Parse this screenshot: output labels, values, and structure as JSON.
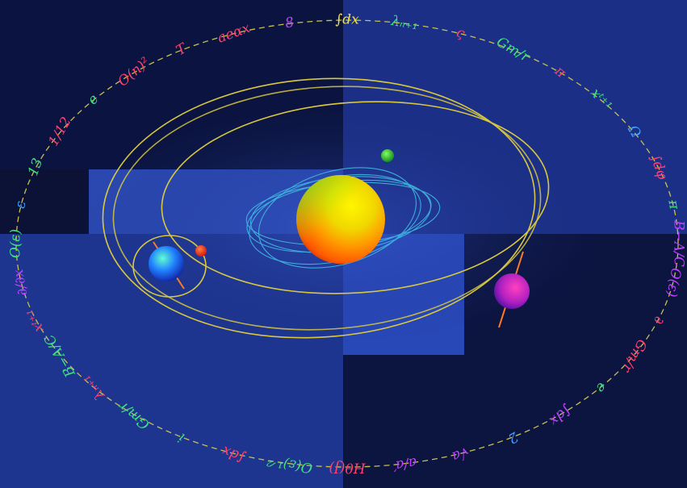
{
  "colors": {
    "background_dark": "#0b1236",
    "background_mid": "#1a2d7a",
    "background_light": "#2a44a8",
    "orbit_gold": "#d8c840",
    "orbit_cyan": "#40b8e0",
    "formula_dashes": "#c8c050"
  },
  "formulas": [
    {
      "text": "∫dx",
      "color": "#f0e040"
    },
    {
      "text": "λₙ₊₁",
      "color": "#40e080"
    },
    {
      "text": "ς",
      "color": "#ff4070"
    },
    {
      "text": "Gm/r",
      "color": "#40e080"
    },
    {
      "text": "π",
      "color": "#ff4070"
    },
    {
      "text": "xᵗ⁺¹",
      "color": "#40e080"
    },
    {
      "text": "Ω",
      "color": "#40a0ff"
    },
    {
      "text": "∫dφ",
      "color": "#ff4070"
    },
    {
      "text": "π",
      "color": "#40e080"
    },
    {
      "text": "B−A/C",
      "color": "#c040ff"
    },
    {
      "text": "O(ε)",
      "color": "#c040ff"
    },
    {
      "text": "∂",
      "color": "#ff4070"
    },
    {
      "text": "Gm/r",
      "color": "#ff4070"
    },
    {
      "text": "e",
      "color": "#40e080"
    },
    {
      "text": "∫dx",
      "color": "#c040ff"
    },
    {
      "text": "2",
      "color": "#40a0ff"
    },
    {
      "text": "√a",
      "color": "#c040ff"
    },
    {
      "text": "a/a′",
      "color": "#c040ff"
    },
    {
      "text": "Hθ(J)",
      "color": "#ff4070"
    },
    {
      "text": "O(ε)¹ᐟ²",
      "color": "#40e080"
    },
    {
      "text": "∫dx",
      "color": "#ff4070"
    },
    {
      "text": "i",
      "color": "#40e080"
    },
    {
      "text": "Gm/r",
      "color": "#40e080"
    },
    {
      "text": "λₙ₊₁",
      "color": "#ff4070"
    },
    {
      "text": "B−A/C",
      "color": "#40e080"
    },
    {
      "text": "xᵗ⁺¹",
      "color": "#ff4070"
    },
    {
      "text": "∂/∂x",
      "color": "#c040ff"
    },
    {
      "text": "O(ε)",
      "color": "#40e080"
    },
    {
      "text": "ε",
      "color": "#40a0ff"
    },
    {
      "text": "13",
      "color": "#40e080"
    },
    {
      "text": "1/12",
      "color": "#ff4070"
    },
    {
      "text": "e",
      "color": "#40e080"
    },
    {
      "text": "O(n)²",
      "color": "#ff4070"
    },
    {
      "text": "T",
      "color": "#ff4070"
    },
    {
      "text": "aeαx",
      "color": "#ff4070"
    },
    {
      "text": "8",
      "color": "#c040ff"
    }
  ]
}
